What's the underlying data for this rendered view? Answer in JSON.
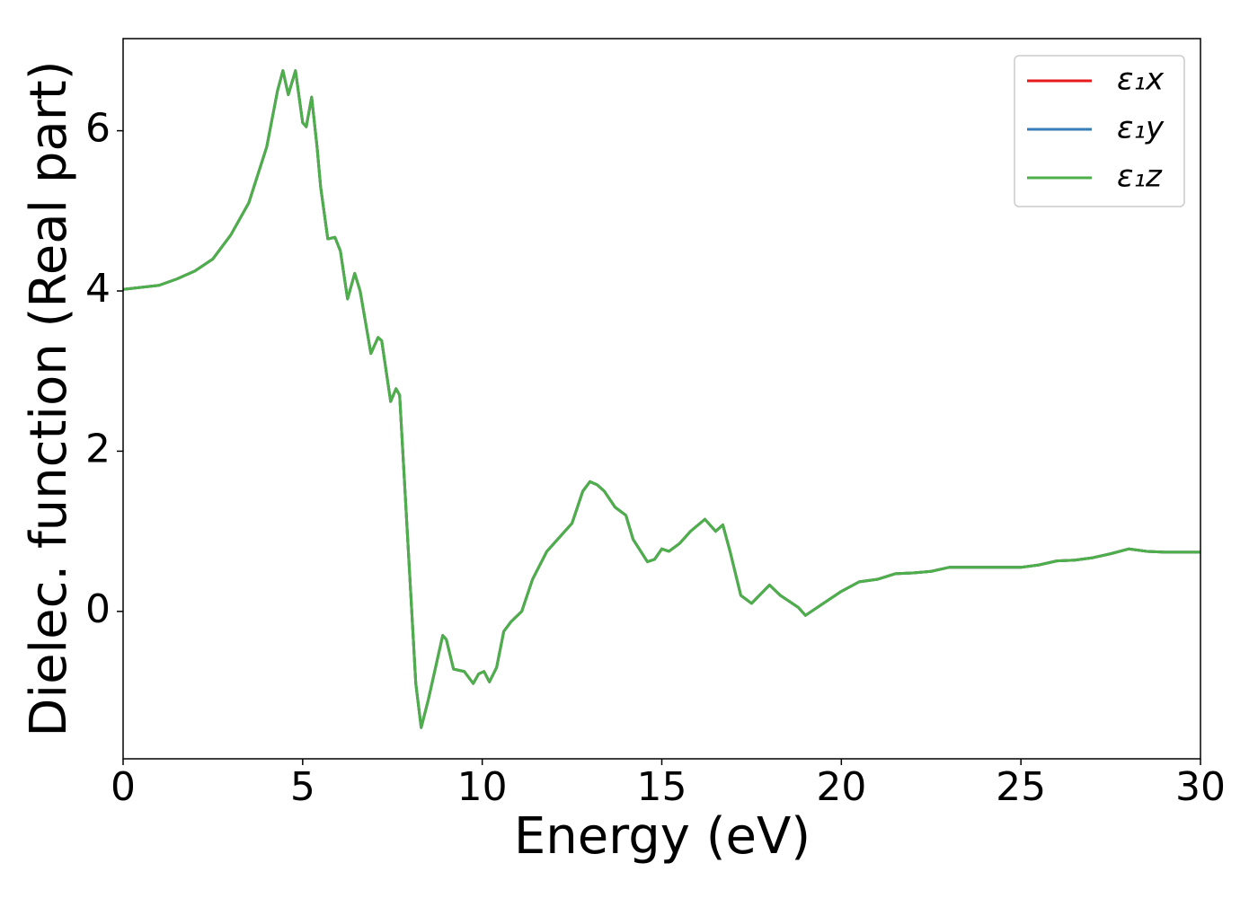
{
  "chart_data": {
    "type": "line",
    "xlabel": "Energy (eV)",
    "ylabel": "Dielec. function (Real part)",
    "x": [
      0,
      1,
      1.5,
      2,
      2.5,
      3,
      3.5,
      4,
      4.3,
      4.45,
      4.6,
      4.8,
      5.0,
      5.1,
      5.25,
      5.4,
      5.5,
      5.7,
      5.9,
      6.05,
      6.25,
      6.45,
      6.6,
      6.9,
      7.1,
      7.2,
      7.45,
      7.6,
      7.7,
      7.85,
      8.0,
      8.15,
      8.3,
      8.5,
      8.75,
      8.9,
      9.0,
      9.2,
      9.5,
      9.75,
      9.9,
      10.05,
      10.2,
      10.4,
      10.6,
      10.8,
      11.1,
      11.4,
      11.8,
      12.3,
      12.5,
      12.8,
      13.0,
      13.2,
      13.4,
      13.7,
      14.0,
      14.2,
      14.6,
      14.8,
      15.0,
      15.2,
      15.5,
      15.8,
      16.2,
      16.5,
      16.7,
      16.9,
      17.2,
      17.5,
      18.0,
      18.3,
      18.8,
      19.0,
      19.5,
      20.0,
      20.5,
      21.0,
      21.5,
      22.0,
      22.5,
      23.0,
      23.5,
      24.0,
      24.5,
      25,
      25.5,
      26,
      26.5,
      27,
      27.5,
      28,
      28.5,
      29,
      29.5,
      30
    ],
    "series": [
      {
        "name": "ε₁x",
        "color": "#e41a1c",
        "values": [
          4.02,
          4.07,
          4.15,
          4.25,
          4.4,
          4.7,
          5.1,
          5.8,
          6.5,
          6.75,
          6.45,
          6.75,
          6.1,
          6.05,
          6.42,
          5.8,
          5.3,
          4.65,
          4.67,
          4.5,
          3.9,
          4.22,
          4.0,
          3.22,
          3.42,
          3.38,
          2.62,
          2.78,
          2.7,
          1.5,
          0.3,
          -0.9,
          -1.45,
          -1.1,
          -0.6,
          -0.3,
          -0.35,
          -0.72,
          -0.75,
          -0.9,
          -0.78,
          -0.75,
          -0.88,
          -0.7,
          -0.25,
          -0.13,
          0.0,
          0.4,
          0.75,
          1.0,
          1.1,
          1.5,
          1.62,
          1.58,
          1.5,
          1.3,
          1.2,
          0.9,
          0.62,
          0.65,
          0.78,
          0.75,
          0.85,
          1.0,
          1.15,
          1.0,
          1.08,
          0.75,
          0.2,
          0.1,
          0.33,
          0.2,
          0.05,
          -0.05,
          0.1,
          0.25,
          0.37,
          0.4,
          0.47,
          0.48,
          0.5,
          0.55,
          0.55,
          0.55,
          0.55,
          0.55,
          0.58,
          0.63,
          0.64,
          0.67,
          0.72,
          0.78,
          0.75,
          0.74,
          0.74,
          0.74
        ]
      },
      {
        "name": "ε₁y",
        "color": "#377eb8",
        "values": [
          4.02,
          4.07,
          4.15,
          4.25,
          4.4,
          4.7,
          5.1,
          5.8,
          6.5,
          6.75,
          6.45,
          6.75,
          6.1,
          6.05,
          6.42,
          5.8,
          5.3,
          4.65,
          4.67,
          4.5,
          3.9,
          4.22,
          4.0,
          3.22,
          3.42,
          3.38,
          2.62,
          2.78,
          2.7,
          1.5,
          0.3,
          -0.9,
          -1.45,
          -1.1,
          -0.6,
          -0.3,
          -0.35,
          -0.72,
          -0.75,
          -0.9,
          -0.78,
          -0.75,
          -0.88,
          -0.7,
          -0.25,
          -0.13,
          0.0,
          0.4,
          0.75,
          1.0,
          1.1,
          1.5,
          1.62,
          1.58,
          1.5,
          1.3,
          1.2,
          0.9,
          0.62,
          0.65,
          0.78,
          0.75,
          0.85,
          1.0,
          1.15,
          1.0,
          1.08,
          0.75,
          0.2,
          0.1,
          0.33,
          0.2,
          0.05,
          -0.05,
          0.1,
          0.25,
          0.37,
          0.4,
          0.47,
          0.48,
          0.5,
          0.55,
          0.55,
          0.55,
          0.55,
          0.55,
          0.58,
          0.63,
          0.64,
          0.67,
          0.72,
          0.78,
          0.75,
          0.74,
          0.74,
          0.74
        ]
      },
      {
        "name": "ε₁z",
        "color": "#4daf4a",
        "values": [
          4.02,
          4.07,
          4.15,
          4.25,
          4.4,
          4.7,
          5.1,
          5.8,
          6.5,
          6.75,
          6.45,
          6.75,
          6.1,
          6.05,
          6.42,
          5.8,
          5.3,
          4.65,
          4.67,
          4.5,
          3.9,
          4.22,
          4.0,
          3.22,
          3.42,
          3.38,
          2.62,
          2.78,
          2.7,
          1.5,
          0.3,
          -0.9,
          -1.45,
          -1.1,
          -0.6,
          -0.3,
          -0.35,
          -0.72,
          -0.75,
          -0.9,
          -0.78,
          -0.75,
          -0.88,
          -0.7,
          -0.25,
          -0.13,
          0.0,
          0.4,
          0.75,
          1.0,
          1.1,
          1.5,
          1.62,
          1.58,
          1.5,
          1.3,
          1.2,
          0.9,
          0.62,
          0.65,
          0.78,
          0.75,
          0.85,
          1.0,
          1.15,
          1.0,
          1.08,
          0.75,
          0.2,
          0.1,
          0.33,
          0.2,
          0.05,
          -0.05,
          0.1,
          0.25,
          0.37,
          0.4,
          0.47,
          0.48,
          0.5,
          0.55,
          0.55,
          0.55,
          0.55,
          0.55,
          0.58,
          0.63,
          0.64,
          0.67,
          0.72,
          0.78,
          0.75,
          0.74,
          0.74,
          0.74
        ]
      }
    ],
    "xlim": [
      0,
      30
    ],
    "xticks": [
      0,
      5,
      10,
      15,
      20,
      25,
      30
    ],
    "ylim": [
      -1.84,
      7.15
    ],
    "yticks": [
      0,
      2,
      4,
      6
    ],
    "grid": false,
    "legend": "upper right"
  }
}
